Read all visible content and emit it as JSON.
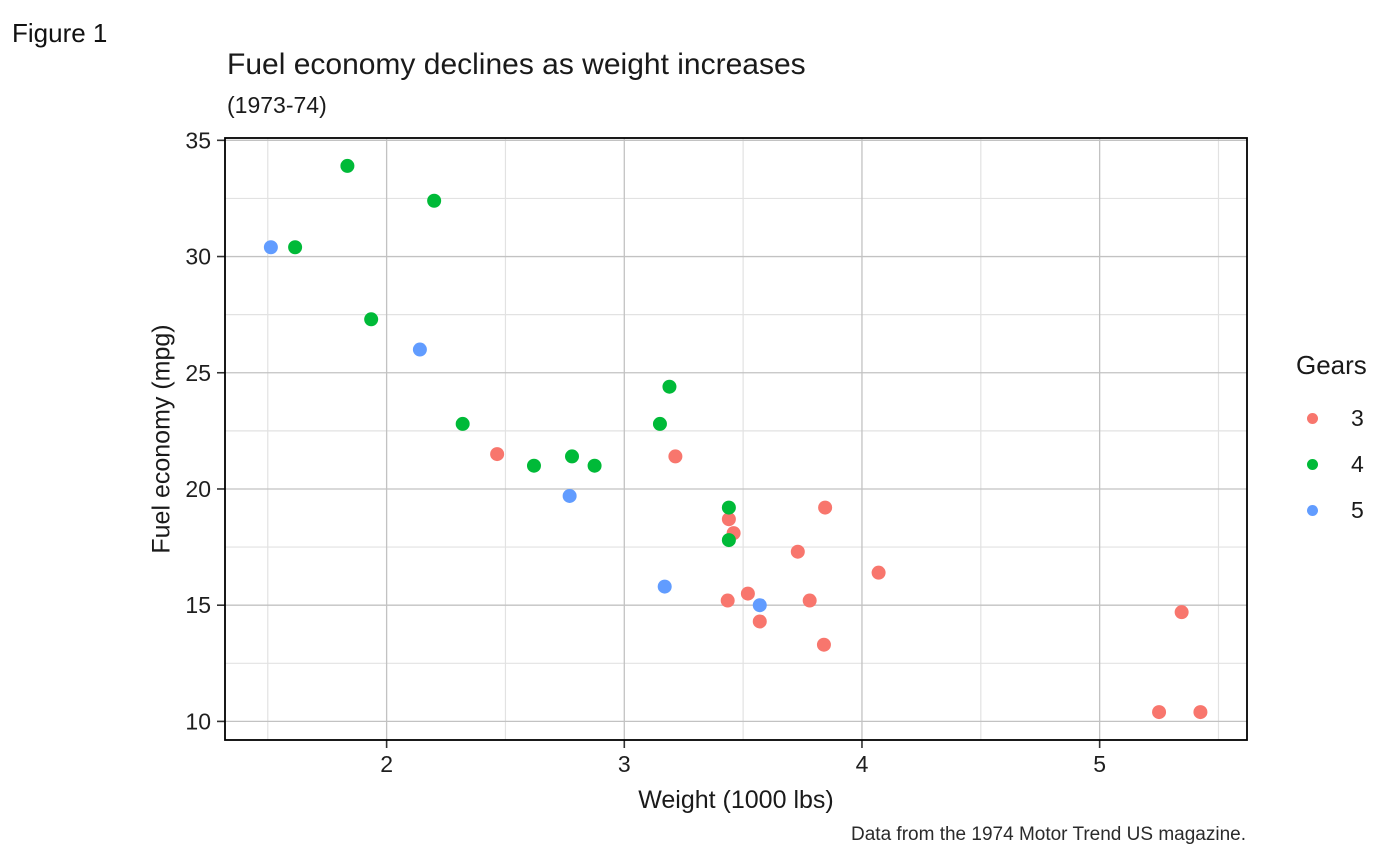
{
  "figure_label": "Figure 1",
  "chart_data": {
    "type": "scatter",
    "title": "Fuel economy declines as weight increases",
    "subtitle": "(1973-74)",
    "caption": "Data from the 1974 Motor Trend US magazine.",
    "xlabel": "Weight (1000 lbs)",
    "ylabel": "Fuel economy (mpg)",
    "legend_title": "Gears",
    "legend_position": "right",
    "xlim": [
      1.32,
      5.62
    ],
    "ylim": [
      9.2,
      35.1
    ],
    "x_ticks": [
      2,
      3,
      4,
      5
    ],
    "y_ticks": [
      10,
      15,
      20,
      25,
      30,
      35
    ],
    "x_minor_gridlines": [
      1.5,
      2.5,
      3.5,
      4.5,
      5.5
    ],
    "y_minor_gridlines": [
      12.5,
      17.5,
      22.5,
      27.5,
      32.5
    ],
    "grid": "major+minor",
    "point_radius_px": 7,
    "series": [
      {
        "name": "3",
        "color": "#F8766D",
        "points": [
          [
            2.465,
            21.5
          ],
          [
            3.215,
            21.4
          ],
          [
            3.44,
            18.7
          ],
          [
            3.46,
            18.1
          ],
          [
            3.52,
            15.5
          ],
          [
            3.435,
            15.2
          ],
          [
            3.57,
            14.3
          ],
          [
            3.73,
            17.3
          ],
          [
            3.78,
            15.2
          ],
          [
            3.84,
            13.3
          ],
          [
            3.845,
            19.2
          ],
          [
            4.07,
            16.4
          ],
          [
            5.25,
            10.4
          ],
          [
            5.345,
            14.7
          ],
          [
            5.424,
            10.4
          ]
        ]
      },
      {
        "name": "4",
        "color": "#00BA38",
        "points": [
          [
            1.615,
            30.4
          ],
          [
            1.835,
            33.9
          ],
          [
            1.935,
            27.3
          ],
          [
            2.2,
            32.4
          ],
          [
            2.32,
            22.8
          ],
          [
            2.62,
            21.0
          ],
          [
            2.78,
            21.4
          ],
          [
            2.875,
            21.0
          ],
          [
            3.15,
            22.8
          ],
          [
            3.19,
            24.4
          ],
          [
            3.44,
            19.2
          ],
          [
            3.44,
            17.8
          ]
        ]
      },
      {
        "name": "5",
        "color": "#619CFF",
        "points": [
          [
            1.513,
            30.4
          ],
          [
            2.14,
            26.0
          ],
          [
            2.77,
            19.7
          ],
          [
            3.17,
            15.8
          ],
          [
            3.57,
            15.0
          ]
        ]
      }
    ]
  },
  "colors": {
    "background": "#FFFFFF",
    "panel_border": "#000000",
    "grid_major": "#C2C2C2",
    "grid_minor": "#E2E2E2",
    "tick": "#333333",
    "tick_label": "#1F1F1F",
    "text": "#1A1A1A"
  }
}
